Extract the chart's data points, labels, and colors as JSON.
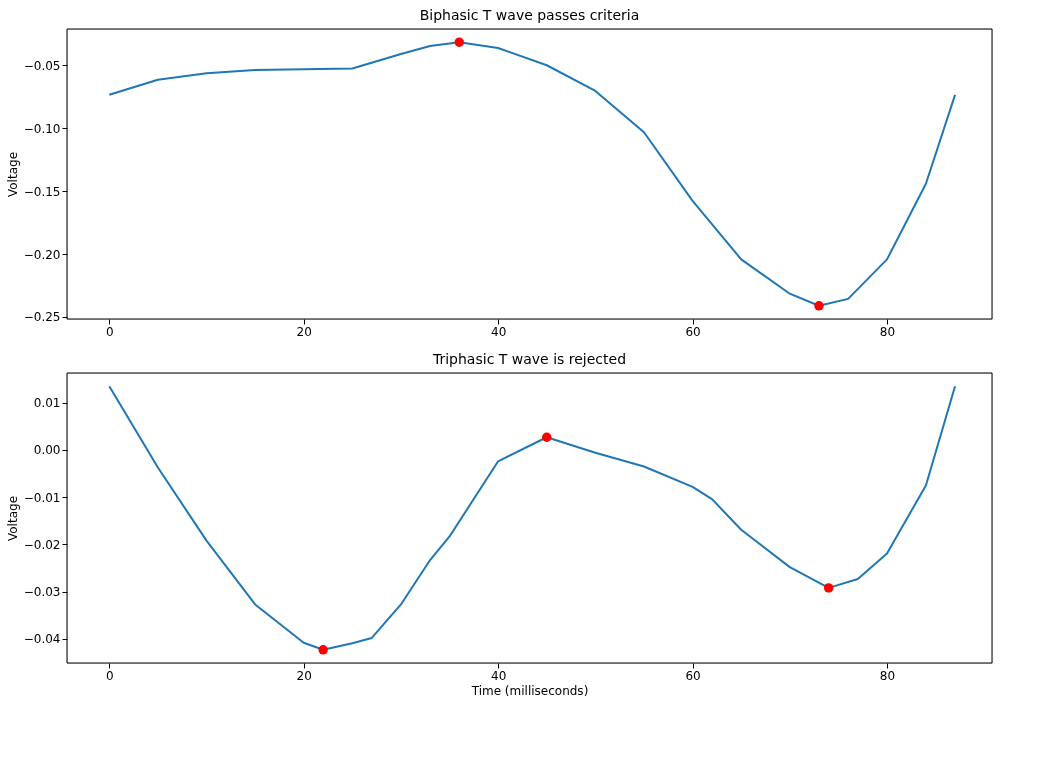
{
  "chart_data": [
    {
      "type": "line",
      "title": "Biphasic T wave passes criteria",
      "ylabel": "Voltage",
      "xlim": [
        -4.35,
        90.8
      ],
      "ylim": [
        -0.2516,
        -0.0212
      ],
      "xticks": [
        0,
        20,
        40,
        60,
        80
      ],
      "yticks": [
        -0.25,
        {
          "value": -0.2,
          "label": "−0.20"
        },
        -0.15,
        {
          "value": -0.1,
          "label": "−0.10"
        },
        -0.05
      ],
      "grid": false,
      "legend": false,
      "series": [
        {
          "type": "line",
          "color": "#1f77b4",
          "marker": "none",
          "x": [
            0,
            5,
            10,
            15,
            20,
            25,
            30,
            33,
            36,
            40,
            45,
            50,
            55,
            60,
            65,
            70,
            73,
            76,
            80,
            84,
            87
          ],
          "values": [
            -0.0735,
            -0.0615,
            -0.0564,
            -0.0538,
            -0.0531,
            -0.0526,
            -0.0411,
            -0.0347,
            -0.0317,
            -0.0363,
            -0.05,
            -0.0704,
            -0.1032,
            -0.1578,
            -0.2042,
            -0.2315,
            -0.2411,
            -0.2356,
            -0.2042,
            -0.1441,
            -0.0735
          ]
        },
        {
          "type": "scatter",
          "color": "#ff0000",
          "marker": "circle",
          "x": [
            36,
            73
          ],
          "values": [
            -0.0317,
            -0.2411
          ]
        }
      ]
    },
    {
      "type": "line",
      "title": "Triphasic T wave is rejected",
      "xlabel": "Time (milliseconds)",
      "ylabel": "Voltage",
      "xlim": [
        -4.35,
        90.8
      ],
      "ylim": [
        -0.0451,
        0.0163
      ],
      "xticks": [
        0,
        20,
        40,
        60,
        80
      ],
      "yticks": [
        -0.04,
        -0.03,
        -0.02,
        -0.01,
        {
          "value": 0,
          "label": "0.00"
        },
        0.01
      ],
      "grid": false,
      "legend": false,
      "series": [
        {
          "type": "line",
          "color": "#1f77b4",
          "marker": "none",
          "x": [
            0,
            5,
            10,
            15,
            20,
            22,
            25,
            27,
            30,
            33,
            35,
            40,
            45,
            50,
            55,
            60,
            62,
            65,
            70,
            74,
            77,
            80,
            84,
            87
          ],
          "values": [
            0.0135,
            -0.0037,
            -0.0192,
            -0.0327,
            -0.0408,
            -0.0423,
            -0.0409,
            -0.0398,
            -0.0327,
            -0.0233,
            -0.0183,
            -0.0024,
            0.0027,
            -0.0006,
            -0.0035,
            -0.0078,
            -0.0104,
            -0.0169,
            -0.0248,
            -0.0292,
            -0.0273,
            -0.0219,
            -0.0075,
            0.0135
          ]
        },
        {
          "type": "scatter",
          "color": "#ff0000",
          "marker": "circle",
          "x": [
            22,
            45,
            74
          ],
          "values": [
            -0.0423,
            0.0027,
            -0.0292
          ]
        }
      ]
    }
  ]
}
